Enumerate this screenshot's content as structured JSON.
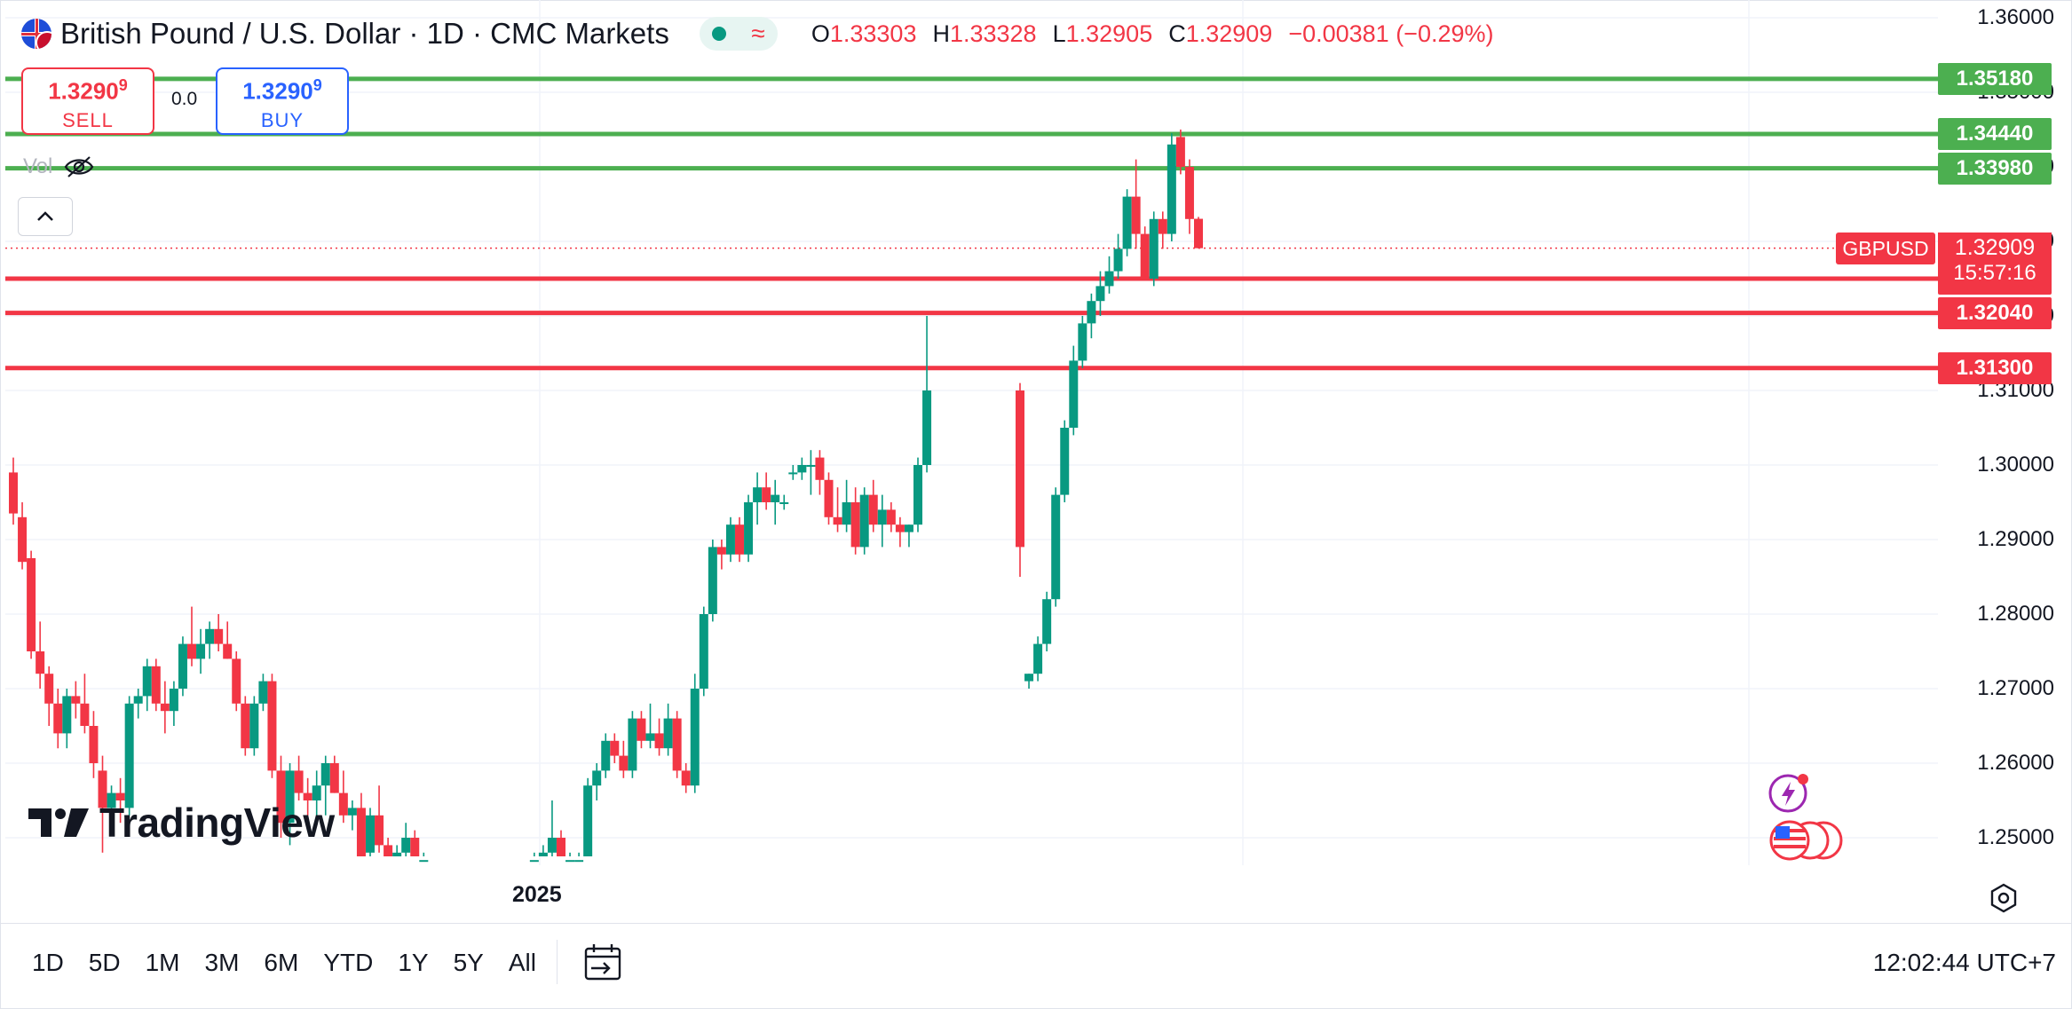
{
  "header": {
    "title": "British Pound / U.S. Dollar · 1D · CMC Markets",
    "ohlc": {
      "o_label": "O",
      "o": "1.33303",
      "h_label": "H",
      "h": "1.33328",
      "l_label": "L",
      "l": "1.32905",
      "c_label": "C",
      "c": "1.32909",
      "change": "−0.00381 (−0.29%)"
    }
  },
  "trade": {
    "sell_price_main": "1.3290",
    "sell_price_sup": "9",
    "sell_label": "SELL",
    "spread": "0.0",
    "buy_price_main": "1.3290",
    "buy_price_sup": "9",
    "buy_label": "BUY"
  },
  "volume_label": "Vol",
  "logo_text": "TradingView",
  "price_axis": {
    "ticks": [
      "1.36000",
      "1.35000",
      "1.34000",
      "1.33000",
      "1.32000",
      "1.31000",
      "1.30000",
      "1.29000",
      "1.28000",
      "1.27000",
      "1.26000",
      "1.25000"
    ],
    "tick_values": [
      1.36,
      1.35,
      1.34,
      1.33,
      1.32,
      1.31,
      1.3,
      1.29,
      1.28,
      1.27,
      1.26,
      1.25
    ]
  },
  "horizontal_lines": [
    {
      "label": "1.35180",
      "value": 1.3518,
      "color": "#4caf50"
    },
    {
      "label": "1.34440",
      "value": 1.3444,
      "color": "#4caf50"
    },
    {
      "label": "1.33980",
      "value": 1.3398,
      "color": "#4caf50"
    },
    {
      "label": "1.32500",
      "value": 1.325,
      "color": "#f23645"
    },
    {
      "label": "1.32040",
      "value": 1.3204,
      "color": "#f23645"
    },
    {
      "label": "1.31300",
      "value": 1.313,
      "color": "#f23645"
    }
  ],
  "current": {
    "symbol": "GBPUSD",
    "price": "1.32909",
    "countdown": "15:57:16",
    "value": 1.32909
  },
  "x_axis": {
    "label_2025": "2025"
  },
  "colors": {
    "up": "#089981",
    "down": "#f23645",
    "support": "#f23645",
    "resistance": "#4caf50"
  },
  "range_buttons": [
    "1D",
    "5D",
    "1M",
    "3M",
    "6M",
    "YTD",
    "1Y",
    "5Y",
    "All"
  ],
  "clock": "12:02:44 UTC+7",
  "icons": [
    "calendar-range-icon",
    "settings-hexagon-icon",
    "eye-off-icon",
    "chevron-up-icon",
    "lightning-event-icon",
    "us-flag-event-icon"
  ],
  "chart_data": {
    "type": "candlestick",
    "ylim": [
      1.245,
      1.36
    ],
    "candles": [
      [
        1.299,
        1.301,
        1.292,
        1.2935
      ],
      [
        1.293,
        1.295,
        1.286,
        1.287
      ],
      [
        1.2875,
        1.2885,
        1.274,
        1.275
      ],
      [
        1.275,
        1.279,
        1.27,
        1.272
      ],
      [
        1.272,
        1.273,
        1.265,
        1.268
      ],
      [
        1.268,
        1.27,
        1.262,
        1.264
      ],
      [
        1.264,
        1.27,
        1.262,
        1.269
      ],
      [
        1.269,
        1.271,
        1.266,
        1.268
      ],
      [
        1.268,
        1.272,
        1.264,
        1.265
      ],
      [
        1.265,
        1.267,
        1.258,
        1.26
      ],
      [
        1.259,
        1.261,
        1.248,
        1.254
      ],
      [
        1.254,
        1.257,
        1.251,
        1.256
      ],
      [
        1.256,
        1.258,
        1.252,
        1.255
      ],
      [
        1.254,
        1.269,
        1.253,
        1.268
      ],
      [
        1.268,
        1.27,
        1.266,
        1.269
      ],
      [
        1.269,
        1.274,
        1.267,
        1.273
      ],
      [
        1.273,
        1.274,
        1.267,
        1.268
      ],
      [
        1.268,
        1.271,
        1.264,
        1.267
      ],
      [
        1.267,
        1.271,
        1.265,
        1.27
      ],
      [
        1.27,
        1.277,
        1.269,
        1.276
      ],
      [
        1.276,
        1.281,
        1.273,
        1.274
      ],
      [
        1.274,
        1.278,
        1.272,
        1.276
      ],
      [
        1.276,
        1.279,
        1.274,
        1.278
      ],
      [
        1.278,
        1.28,
        1.275,
        1.276
      ],
      [
        1.276,
        1.279,
        1.274,
        1.274
      ],
      [
        1.274,
        1.275,
        1.267,
        1.268
      ],
      [
        1.268,
        1.269,
        1.261,
        1.262
      ],
      [
        1.262,
        1.269,
        1.261,
        1.268
      ],
      [
        1.268,
        1.272,
        1.267,
        1.271
      ],
      [
        1.271,
        1.272,
        1.258,
        1.259
      ],
      [
        1.259,
        1.261,
        1.25,
        1.252
      ],
      [
        1.252,
        1.26,
        1.249,
        1.259
      ],
      [
        1.259,
        1.261,
        1.255,
        1.256
      ],
      [
        1.256,
        1.258,
        1.253,
        1.255
      ],
      [
        1.255,
        1.259,
        1.253,
        1.257
      ],
      [
        1.257,
        1.261,
        1.253,
        1.26
      ],
      [
        1.26,
        1.261,
        1.256,
        1.256
      ],
      [
        1.256,
        1.259,
        1.252,
        1.253
      ],
      [
        1.253,
        1.255,
        1.251,
        1.254
      ],
      [
        1.254,
        1.256,
        1.246,
        1.247
      ],
      [
        1.248,
        1.254,
        1.245,
        1.253
      ],
      [
        1.253,
        1.257,
        1.248,
        1.249
      ],
      [
        1.249,
        1.25,
        1.246,
        1.247
      ],
      [
        1.246,
        1.249,
        1.246,
        1.248
      ],
      [
        1.248,
        1.252,
        1.246,
        1.25
      ],
      [
        1.25,
        1.251,
        1.246,
        1.247
      ],
      [
        1.247,
        1.248,
        1.246,
        1.247
      ],
      [
        1.247,
        1.248,
        1.246,
        1.247
      ],
      [
        1.246,
        1.249,
        1.246,
        1.248
      ],
      [
        1.248,
        1.255,
        1.247,
        1.25
      ],
      [
        1.25,
        1.251,
        1.246,
        1.247
      ],
      [
        1.247,
        1.248,
        1.246,
        1.247
      ],
      [
        1.246,
        1.248,
        1.246,
        1.247
      ],
      [
        1.247,
        1.258,
        1.246,
        1.257
      ],
      [
        1.257,
        1.26,
        1.255,
        1.259
      ],
      [
        1.259,
        1.264,
        1.258,
        1.263
      ],
      [
        1.263,
        1.264,
        1.26,
        1.261
      ],
      [
        1.261,
        1.263,
        1.258,
        1.259
      ],
      [
        1.259,
        1.267,
        1.258,
        1.266
      ],
      [
        1.266,
        1.267,
        1.262,
        1.263
      ],
      [
        1.263,
        1.268,
        1.262,
        1.264
      ],
      [
        1.264,
        1.266,
        1.261,
        1.262
      ],
      [
        1.262,
        1.268,
        1.261,
        1.266
      ],
      [
        1.266,
        1.267,
        1.258,
        1.259
      ],
      [
        1.259,
        1.26,
        1.256,
        1.257
      ],
      [
        1.257,
        1.272,
        1.256,
        1.27
      ],
      [
        1.27,
        1.281,
        1.269,
        1.28
      ],
      [
        1.28,
        1.29,
        1.279,
        1.289
      ],
      [
        1.289,
        1.29,
        1.286,
        1.288
      ],
      [
        1.288,
        1.293,
        1.287,
        1.292
      ],
      [
        1.292,
        1.293,
        1.287,
        1.288
      ],
      [
        1.288,
        1.296,
        1.287,
        1.295
      ],
      [
        1.295,
        1.299,
        1.292,
        1.297
      ],
      [
        1.297,
        1.299,
        1.294,
        1.295
      ],
      [
        1.295,
        1.298,
        1.292,
        1.296
      ],
      [
        1.295,
        1.296,
        1.294,
        1.295
      ],
      [
        1.299,
        1.3,
        1.298,
        1.299
      ],
      [
        1.299,
        1.301,
        1.298,
        1.3
      ],
      [
        1.3,
        1.302,
        1.296,
        1.3
      ],
      [
        1.301,
        1.302,
        1.296,
        1.298
      ],
      [
        1.298,
        1.299,
        1.292,
        1.293
      ],
      [
        1.293,
        1.297,
        1.291,
        1.292
      ],
      [
        1.292,
        1.298,
        1.291,
        1.295
      ],
      [
        1.295,
        1.297,
        1.288,
        1.289
      ],
      [
        1.289,
        1.297,
        1.288,
        1.296
      ],
      [
        1.296,
        1.298,
        1.291,
        1.292
      ],
      [
        1.292,
        1.296,
        1.289,
        1.294
      ],
      [
        1.294,
        1.295,
        1.291,
        1.292
      ],
      [
        1.292,
        1.293,
        1.289,
        1.291
      ],
      [
        1.291,
        1.292,
        1.289,
        1.292
      ],
      [
        1.292,
        1.301,
        1.291,
        1.3
      ],
      [
        1.3,
        1.32,
        1.299,
        1.31
      ],
      [
        1.31,
        1.311,
        1.285,
        1.289
      ],
      [
        1.271,
        1.272,
        1.27,
        1.272
      ],
      [
        1.272,
        1.277,
        1.271,
        1.276
      ],
      [
        1.276,
        1.283,
        1.275,
        1.282
      ],
      [
        1.282,
        1.297,
        1.281,
        1.296
      ],
      [
        1.296,
        1.306,
        1.295,
        1.305
      ],
      [
        1.305,
        1.316,
        1.304,
        1.314
      ],
      [
        1.314,
        1.32,
        1.313,
        1.319
      ],
      [
        1.319,
        1.323,
        1.317,
        1.322
      ],
      [
        1.322,
        1.326,
        1.32,
        1.324
      ],
      [
        1.324,
        1.328,
        1.323,
        1.326
      ],
      [
        1.326,
        1.331,
        1.325,
        1.329
      ],
      [
        1.329,
        1.337,
        1.328,
        1.336
      ],
      [
        1.336,
        1.341,
        1.329,
        1.331
      ],
      [
        1.331,
        1.332,
        1.325,
        1.325
      ],
      [
        1.325,
        1.334,
        1.324,
        1.333
      ],
      [
        1.333,
        1.334,
        1.329,
        1.331
      ],
      [
        1.331,
        1.3445,
        1.33,
        1.343
      ],
      [
        1.344,
        1.345,
        1.339,
        1.34
      ],
      [
        1.34,
        1.341,
        1.331,
        1.333
      ],
      [
        1.33303,
        1.33328,
        1.32905,
        1.32909
      ]
    ]
  }
}
